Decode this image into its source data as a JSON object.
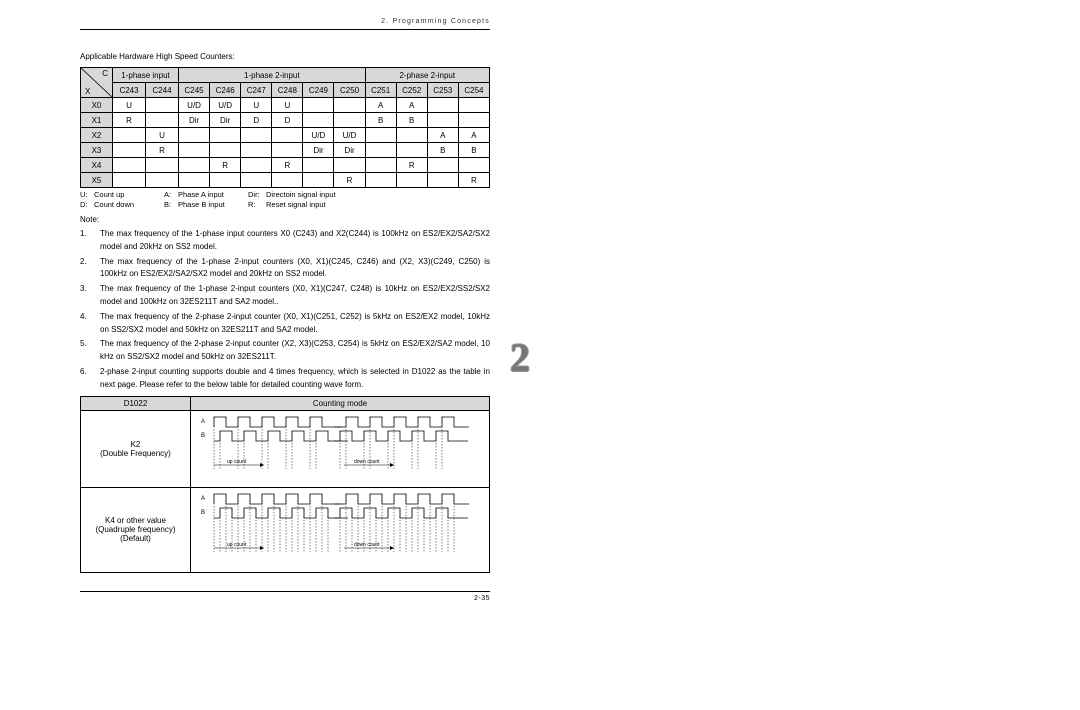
{
  "header": {
    "chapter": "2. Programming Concepts"
  },
  "subtitle": "Applicable Hardware High Speed Counters:",
  "table1": {
    "diag_c": "C",
    "diag_x": "X",
    "group1": "1-phase input",
    "group2": "1-phase  2-input",
    "group3": "2-phase  2-input",
    "cols": [
      "C243",
      "C244",
      "C245",
      "C246",
      "C247",
      "C248",
      "C249",
      "C250",
      "C251",
      "C252",
      "C253",
      "C254"
    ],
    "rows": [
      "X0",
      "X1",
      "X2",
      "X3",
      "X4",
      "X5"
    ],
    "cells": [
      [
        "U",
        "",
        "U/D",
        "U/D",
        "U",
        "U",
        "",
        "",
        "A",
        "A",
        "",
        ""
      ],
      [
        "R",
        "",
        "Dir",
        "Dir",
        "D",
        "D",
        "",
        "",
        "B",
        "B",
        "",
        ""
      ],
      [
        "",
        "U",
        "",
        "",
        "",
        "",
        "U/D",
        "U/D",
        "",
        "",
        "A",
        "A"
      ],
      [
        "",
        "R",
        "",
        "",
        "",
        "",
        "Dir",
        "Dir",
        "",
        "",
        "B",
        "B"
      ],
      [
        "",
        "",
        "",
        "R",
        "",
        "R",
        "",
        "",
        "",
        "R",
        "",
        ""
      ],
      [
        "",
        "",
        "",
        "",
        "",
        "",
        "",
        "R",
        "",
        "",
        "",
        "R"
      ]
    ]
  },
  "legend": {
    "u_k": "U:",
    "u_v": "Count up",
    "a_k": "A:",
    "a_v": "Phase A input",
    "dir_k": "Dir:",
    "dir_v": "Directoin signal input",
    "d_k": "D:",
    "d_v": "Count down",
    "b_k": "B:",
    "b_v": "Phase B input",
    "r_k": "R:",
    "r_v": "Reset signal input"
  },
  "note_label": "Note:",
  "notes": [
    "The max frequency of the 1-phase input counters X0 (C243) and X2(C244) is 100kHz on ES2/EX2/SA2/SX2 model and 20kHz on SS2 model.",
    "The max frequency of the 1-phase 2-input counters (X0, X1)(C245, C246) and (X2, X3)(C249, C250) is 100kHz on ES2/EX2/SA2/SX2 model and 20kHz on SS2 model.",
    "The max frequency of the 1-phase 2-input counters (X0, X1)(C247, C248) is 10kHz on ES2/EX2/SS2/SX2 model and 100kHz on 32ES211T and SA2 model..",
    "The max frequency of the 2-phase 2-input counter (X0, X1)(C251, C252) is 5kHz on ES2/EX2 model, 10kHz on SS2/SX2 model and 50kHz on 32ES211T and SA2 model.",
    "The max frequency of the 2-phase 2-input counter (X2, X3)(C253, C254) is 5kHz on ES2/EX2/SA2 model, 10 kHz on SS2/SX2 model and 50kHz on 32ES211T.",
    "2-phase 2-input counting supports double and 4 times frequency, which is selected in D1022 as the table in next page.  Please refer to the below table for detailed counting wave form."
  ],
  "table2": {
    "h1": "D1022",
    "h2": "Counting mode",
    "r1a": "K2",
    "r1b": "(Double Frequency)",
    "r2a": "K4 or other value",
    "r2b": "(Quadruple frequency)",
    "r2c": "(Default)",
    "lblA": "A",
    "lblB": "B",
    "up": "up count",
    "down": "down count"
  },
  "footer": {
    "page": "2-35"
  },
  "side": "2"
}
